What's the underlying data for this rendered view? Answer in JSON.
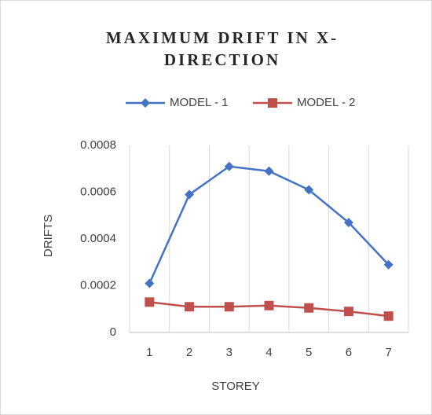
{
  "chart_data": {
    "type": "line",
    "title": [
      "MAXIMUM DRIFT IN X-",
      "DIRECTION"
    ],
    "x_label": "STOREY",
    "y_label": "DRIFTS",
    "categories": [
      "1",
      "2",
      "3",
      "4",
      "5",
      "6",
      "7"
    ],
    "series": [
      {
        "name": "MODEL - 1",
        "color": "#4472c4",
        "marker": "diamond",
        "values": [
          0.00021,
          0.00059,
          0.00071,
          0.00069,
          0.00061,
          0.00047,
          0.00029
        ]
      },
      {
        "name": "MODEL - 2",
        "color": "#c0504d",
        "marker": "square",
        "values": [
          0.00013,
          0.00011,
          0.00011,
          0.000115,
          0.000105,
          9e-05,
          7e-05
        ]
      }
    ],
    "ylim": [
      0,
      0.0008
    ],
    "yticks": [
      0,
      0.0002,
      0.0004,
      0.0006,
      0.0008
    ],
    "grid": "x",
    "legend": "top"
  }
}
